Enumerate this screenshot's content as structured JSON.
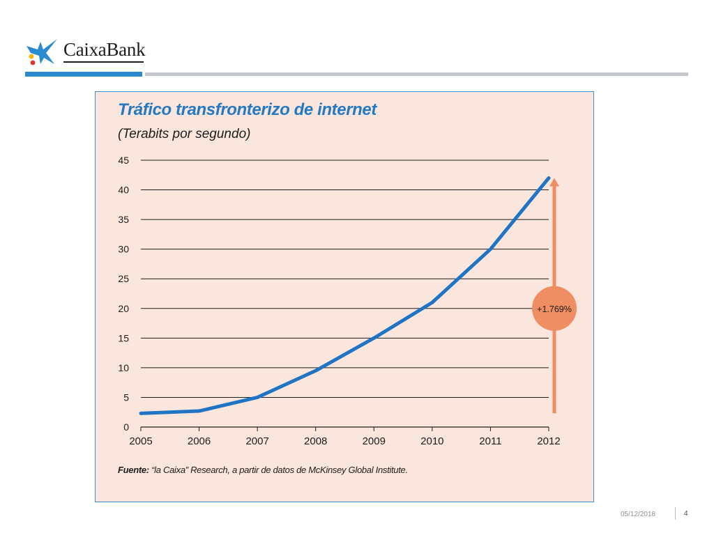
{
  "brand": {
    "name": "CaixaBank",
    "colors": {
      "star_blue": "#2a8bd0",
      "dot_red": "#e3312d",
      "dot_yellow": "#f6b400",
      "accent_blue": "#2479c1",
      "panel_bg": "#fbe6dd",
      "line_blue": "#1f74c3",
      "annotation_orange": "#ee8e62"
    }
  },
  "chart_data": {
    "type": "line",
    "title": "Tráfico transfronterizo de internet",
    "subtitle": "(Terabits por segundo)",
    "x": [
      2005,
      2006,
      2007,
      2008,
      2009,
      2010,
      2011,
      2012
    ],
    "series": [
      {
        "values": [
          2.3,
          2.7,
          5,
          9.5,
          15,
          21,
          30,
          42
        ]
      }
    ],
    "yticks": [
      0,
      5,
      10,
      15,
      20,
      25,
      30,
      35,
      40,
      45
    ],
    "xticks": [
      "2005",
      "2006",
      "2007",
      "2008",
      "2009",
      "2010",
      "2011",
      "2012"
    ],
    "ylim": [
      0,
      45
    ],
    "xlim": [
      2005,
      2012
    ],
    "grid": true,
    "annotation": {
      "label": "+1.769%",
      "from": 2.3,
      "to": 42
    },
    "source_label": "Fuente:",
    "source_text": " “la Caixa” Research, a partir de datos de McKinsey Global Institute."
  },
  "footer": {
    "date": "05/12/2018",
    "page": "4"
  }
}
